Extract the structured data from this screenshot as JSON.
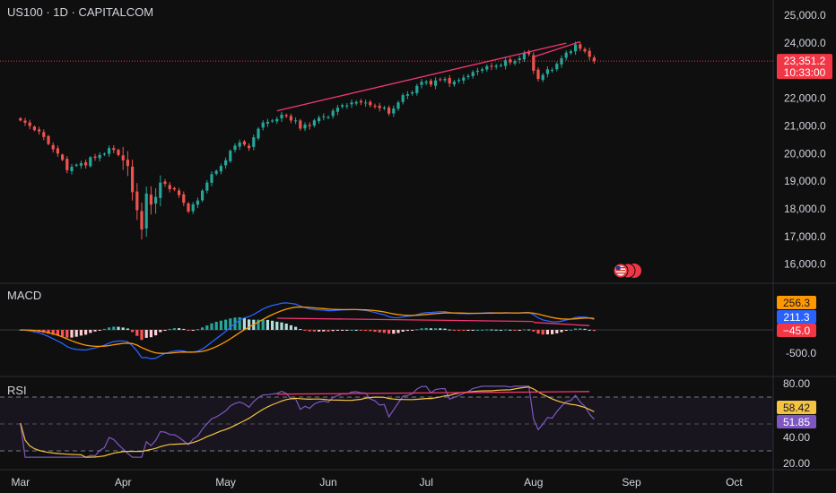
{
  "header": {
    "symbol_line": "US100 · 1D · CAPITALCOM"
  },
  "colors": {
    "up": "#26a69a",
    "down": "#ef5350",
    "macd": "#2962ff",
    "signal": "#ff9800",
    "rsi": "#7e57c2",
    "rsi_ma": "#f5c242",
    "trend": "#f23673",
    "price_tag": "#f23645",
    "hist_up_strong": "#26a69a",
    "hist_up_weak": "#b2dfdb",
    "hist_down_strong": "#ff5252",
    "hist_down_weak": "#ffcdd2"
  },
  "price_scale": {
    "ticks": [
      "25,000.0",
      "24,000.0",
      "23,000.0",
      "22,000.0",
      "21,000.0",
      "20,000.0",
      "19,000.0",
      "18,000.0",
      "17,000.0",
      "16,000.0"
    ],
    "tick_values": [
      25000,
      24000,
      23000,
      22000,
      21000,
      20000,
      19000,
      18000,
      17000,
      16000
    ],
    "last_price": "23,351.2",
    "last_price_value": 23351.2,
    "countdown": "10:33:00"
  },
  "macd_pane": {
    "title": "MACD",
    "ticks": [
      "-500.0"
    ],
    "tick_values": [
      -500
    ],
    "signal_label": "256.3",
    "macd_label": "211.3",
    "hist_label": "−45.0"
  },
  "rsi_pane": {
    "title": "RSI",
    "ticks": [
      "80.00",
      "40.00",
      "20.00"
    ],
    "tick_values": [
      80,
      40,
      20
    ],
    "ma_label": "58.42",
    "rsi_label": "51.85",
    "upper_band": 70,
    "lower_band": 30
  },
  "time_axis": {
    "labels": [
      "Mar",
      "Apr",
      "May",
      "Jun",
      "Jul",
      "Aug",
      "Sep",
      "Oct"
    ]
  },
  "chart_data": {
    "type": "candlestick",
    "title": "US100 · 1D · CAPITALCOM",
    "interval": "1D",
    "y_range": [
      15500,
      25300
    ],
    "x_range": [
      -4,
      161
    ],
    "month_start_index": {
      "Mar": 0,
      "Apr": 22,
      "May": 44,
      "Jun": 66,
      "Jul": 87,
      "Aug": 110,
      "Sep": 131,
      "Oct": 153
    },
    "anchor_closes": [
      [
        0,
        21200
      ],
      [
        3,
        20850
      ],
      [
        5,
        20600
      ],
      [
        8,
        20000
      ],
      [
        10,
        19400
      ],
      [
        13,
        19650
      ],
      [
        16,
        19850
      ],
      [
        19,
        20200
      ],
      [
        21,
        19950
      ],
      [
        23,
        19550
      ],
      [
        24,
        18600
      ],
      [
        25,
        17950
      ],
      [
        26,
        17250
      ],
      [
        27,
        18550
      ],
      [
        28,
        18150
      ],
      [
        30,
        18950
      ],
      [
        33,
        18700
      ],
      [
        36,
        17900
      ],
      [
        38,
        18300
      ],
      [
        40,
        18950
      ],
      [
        43,
        19550
      ],
      [
        45,
        20100
      ],
      [
        47,
        20400
      ],
      [
        49,
        20200
      ],
      [
        51,
        20900
      ],
      [
        53,
        21150
      ],
      [
        55,
        21250
      ],
      [
        57,
        21350
      ],
      [
        59,
        21200
      ],
      [
        60,
        20900
      ],
      [
        61,
        21050
      ],
      [
        63,
        21200
      ],
      [
        65,
        21350
      ],
      [
        67,
        21550
      ],
      [
        69,
        21750
      ],
      [
        71,
        21850
      ],
      [
        73,
        21850
      ],
      [
        75,
        21750
      ],
      [
        77,
        21650
      ],
      [
        79,
        21450
      ],
      [
        81,
        21850
      ],
      [
        83,
        22150
      ],
      [
        85,
        22450
      ],
      [
        87,
        22600
      ],
      [
        89,
        22650
      ],
      [
        91,
        22700
      ],
      [
        93,
        22600
      ],
      [
        95,
        22750
      ],
      [
        97,
        22950
      ],
      [
        99,
        23050
      ],
      [
        101,
        23150
      ],
      [
        103,
        23200
      ],
      [
        105,
        23300
      ],
      [
        107,
        23450
      ],
      [
        109,
        23600
      ],
      [
        110,
        23000
      ],
      [
        111,
        22700
      ],
      [
        112,
        22850
      ],
      [
        113,
        23050
      ],
      [
        115,
        23250
      ],
      [
        117,
        23650
      ],
      [
        119,
        23950
      ],
      [
        121,
        23700
      ],
      [
        122,
        23500
      ],
      [
        123,
        23351.2
      ]
    ],
    "trendlines": [
      {
        "from": [
          55,
          21550
        ],
        "to": [
          117,
          24000
        ],
        "panel": "price"
      },
      {
        "from": [
          110,
          23500
        ],
        "to": [
          120,
          24050
        ],
        "panel": "price"
      },
      {
        "from": [
          55,
          250
        ],
        "to": [
          110,
          180
        ],
        "panel": "macd"
      },
      {
        "from": [
          110,
          160
        ],
        "to": [
          122,
          90
        ],
        "panel": "macd"
      },
      {
        "from": [
          55,
          72
        ],
        "to": [
          122,
          74
        ],
        "panel": "rsi"
      }
    ],
    "macd": {
      "macd": 211.3,
      "signal": 256.3,
      "histogram": -45.0
    },
    "rsi": {
      "rsi": 51.85,
      "ma": 58.42
    }
  }
}
